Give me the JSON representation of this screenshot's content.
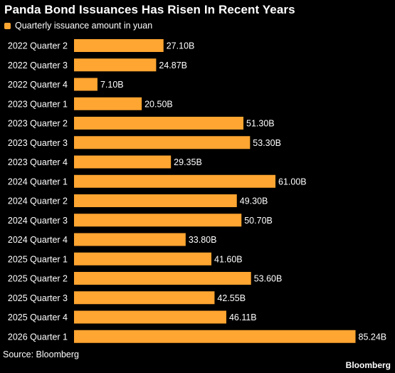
{
  "title": "Panda Bond Issuances Has Risen In Recent Years",
  "legend_label": "Quarterly issuance amount in yuan",
  "source": "Source: Bloomberg",
  "logo": "Bloomberg",
  "colors": {
    "bar": "#ffa531",
    "background": "#000000",
    "text": "#ffffff"
  },
  "chart_data": {
    "type": "bar",
    "orientation": "horizontal",
    "categories": [
      "2022 Quarter 2",
      "2022 Quarter 3",
      "2022 Quarter 4",
      "2023 Quarter 1",
      "2023 Quarter 2",
      "2023 Quarter 3",
      "2023 Quarter 4",
      "2024 Quarter 1",
      "2024 Quarter 2",
      "2024 Quarter 3",
      "2024 Quarter 4",
      "2025 Quarter 1",
      "2025 Quarter 2",
      "2025 Quarter 3",
      "2025 Quarter 4",
      "2026 Quarter 1"
    ],
    "values": [
      27.1,
      24.87,
      7.1,
      20.5,
      51.3,
      53.3,
      29.35,
      61.0,
      49.3,
      50.7,
      33.8,
      41.6,
      53.6,
      42.55,
      46.11,
      85.24
    ],
    "labels": [
      "27.10B",
      "24.87B",
      "7.10B",
      "20.50B",
      "51.30B",
      "53.30B",
      "29.35B",
      "61.00B",
      "49.30B",
      "50.70B",
      "33.80B",
      "41.60B",
      "53.60B",
      "42.55B",
      "46.11B",
      "85.24B"
    ],
    "series": [
      {
        "name": "Quarterly issuance amount in yuan"
      }
    ],
    "xlim": [
      0,
      85.24
    ],
    "grid": false,
    "legend": "top-left"
  }
}
